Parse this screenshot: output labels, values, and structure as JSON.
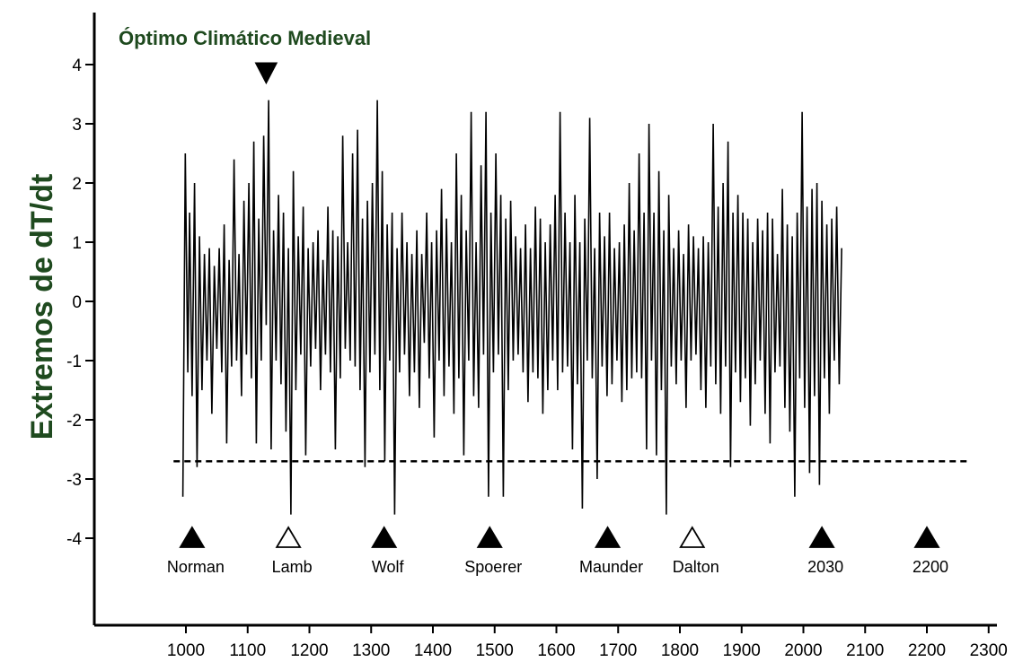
{
  "chart_data": {
    "type": "line",
    "title": "Óptimo Climático Medieval",
    "ylabel": "Extremos de dT/dt",
    "xlabel": "",
    "xlim": [
      930,
      2330
    ],
    "ylim": [
      -5,
      4.8
    ],
    "x_ticks": [
      1000,
      1100,
      1200,
      1300,
      1400,
      1500,
      1600,
      1700,
      1800,
      1900,
      2000,
      2100,
      2200,
      2300
    ],
    "y_ticks": [
      4,
      3,
      2,
      1,
      0,
      -1,
      -2,
      -3,
      -4
    ],
    "threshold": -2.7,
    "title_marker_year": 1130,
    "series": [
      {
        "values": [
          [
            995,
            -3.3
          ],
          [
            999,
            2.5
          ],
          [
            1003,
            -1.2
          ],
          [
            1006,
            1.5
          ],
          [
            1010,
            -1.6
          ],
          [
            1014,
            2.0
          ],
          [
            1018,
            -2.8
          ],
          [
            1022,
            1.1
          ],
          [
            1026,
            -1.5
          ],
          [
            1030,
            0.8
          ],
          [
            1034,
            -1.0
          ],
          [
            1038,
            0.9
          ],
          [
            1042,
            -1.9
          ],
          [
            1046,
            0.6
          ],
          [
            1050,
            -0.8
          ],
          [
            1054,
            0.9
          ],
          [
            1058,
            -1.2
          ],
          [
            1062,
            1.3
          ],
          [
            1066,
            -2.4
          ],
          [
            1070,
            0.7
          ],
          [
            1074,
            -1.1
          ],
          [
            1078,
            2.4
          ],
          [
            1082,
            -1.0
          ],
          [
            1086,
            0.8
          ],
          [
            1090,
            -1.6
          ],
          [
            1094,
            1.7
          ],
          [
            1098,
            -0.9
          ],
          [
            1102,
            2.0
          ],
          [
            1106,
            -1.3
          ],
          [
            1110,
            2.7
          ],
          [
            1114,
            -2.4
          ],
          [
            1118,
            1.4
          ],
          [
            1122,
            -1.0
          ],
          [
            1126,
            2.8
          ],
          [
            1130,
            -0.4
          ],
          [
            1134,
            3.4
          ],
          [
            1138,
            -2.5
          ],
          [
            1142,
            1.2
          ],
          [
            1146,
            -1.0
          ],
          [
            1150,
            1.8
          ],
          [
            1154,
            -1.4
          ],
          [
            1158,
            1.5
          ],
          [
            1162,
            -2.2
          ],
          [
            1166,
            0.9
          ],
          [
            1170,
            -3.6
          ],
          [
            1174,
            2.2
          ],
          [
            1178,
            -1.5
          ],
          [
            1182,
            1.1
          ],
          [
            1186,
            -0.9
          ],
          [
            1190,
            1.6
          ],
          [
            1194,
            -2.6
          ],
          [
            1198,
            0.9
          ],
          [
            1202,
            -1.1
          ],
          [
            1206,
            1.0
          ],
          [
            1210,
            -0.8
          ],
          [
            1214,
            1.2
          ],
          [
            1218,
            -1.5
          ],
          [
            1222,
            0.7
          ],
          [
            1226,
            -0.9
          ],
          [
            1230,
            1.6
          ],
          [
            1234,
            -1.2
          ],
          [
            1238,
            1.2
          ],
          [
            1242,
            -2.5
          ],
          [
            1246,
            1.1
          ],
          [
            1250,
            -1.3
          ],
          [
            1254,
            2.8
          ],
          [
            1258,
            -0.8
          ],
          [
            1262,
            1.0
          ],
          [
            1266,
            -1.0
          ],
          [
            1270,
            2.5
          ],
          [
            1274,
            -1.1
          ],
          [
            1278,
            2.9
          ],
          [
            1282,
            -1.5
          ],
          [
            1286,
            1.4
          ],
          [
            1290,
            -2.8
          ],
          [
            1294,
            1.7
          ],
          [
            1298,
            -1.2
          ],
          [
            1302,
            2.0
          ],
          [
            1306,
            -0.9
          ],
          [
            1310,
            3.4
          ],
          [
            1314,
            -1.5
          ],
          [
            1318,
            2.2
          ],
          [
            1322,
            -2.7
          ],
          [
            1326,
            1.3
          ],
          [
            1330,
            -1.0
          ],
          [
            1334,
            1.5
          ],
          [
            1338,
            -3.6
          ],
          [
            1342,
            0.9
          ],
          [
            1346,
            -1.2
          ],
          [
            1350,
            1.5
          ],
          [
            1354,
            -0.9
          ],
          [
            1358,
            1.0
          ],
          [
            1362,
            -1.6
          ],
          [
            1366,
            0.8
          ],
          [
            1370,
            -1.2
          ],
          [
            1374,
            1.2
          ],
          [
            1378,
            -1.8
          ],
          [
            1382,
            0.8
          ],
          [
            1386,
            -0.7
          ],
          [
            1390,
            1.5
          ],
          [
            1394,
            -1.3
          ],
          [
            1398,
            1.0
          ],
          [
            1402,
            -2.3
          ],
          [
            1406,
            1.2
          ],
          [
            1410,
            -1.0
          ],
          [
            1414,
            1.9
          ],
          [
            1418,
            -1.6
          ],
          [
            1422,
            1.4
          ],
          [
            1426,
            -1.1
          ],
          [
            1430,
            1.0
          ],
          [
            1434,
            -1.9
          ],
          [
            1438,
            2.5
          ],
          [
            1442,
            -1.3
          ],
          [
            1446,
            1.8
          ],
          [
            1450,
            -2.6
          ],
          [
            1454,
            1.2
          ],
          [
            1458,
            -1.0
          ],
          [
            1462,
            3.2
          ],
          [
            1466,
            -1.6
          ],
          [
            1470,
            1.0
          ],
          [
            1474,
            -1.8
          ],
          [
            1478,
            2.3
          ],
          [
            1482,
            -0.9
          ],
          [
            1486,
            3.2
          ],
          [
            1490,
            -3.3
          ],
          [
            1494,
            1.5
          ],
          [
            1498,
            -1.2
          ],
          [
            1502,
            2.5
          ],
          [
            1506,
            -0.9
          ],
          [
            1510,
            1.8
          ],
          [
            1514,
            -3.3
          ],
          [
            1518,
            1.4
          ],
          [
            1522,
            -1.5
          ],
          [
            1526,
            1.7
          ],
          [
            1530,
            -1.0
          ],
          [
            1534,
            1.1
          ],
          [
            1538,
            -0.9
          ],
          [
            1542,
            0.9
          ],
          [
            1546,
            -1.2
          ],
          [
            1550,
            1.3
          ],
          [
            1554,
            -1.7
          ],
          [
            1558,
            0.9
          ],
          [
            1562,
            -1.2
          ],
          [
            1566,
            1.6
          ],
          [
            1570,
            -1.3
          ],
          [
            1574,
            1.4
          ],
          [
            1578,
            -1.9
          ],
          [
            1582,
            1.0
          ],
          [
            1586,
            -1.5
          ],
          [
            1590,
            1.3
          ],
          [
            1594,
            -1.0
          ],
          [
            1598,
            1.8
          ],
          [
            1602,
            -1.5
          ],
          [
            1606,
            3.2
          ],
          [
            1610,
            -1.2
          ],
          [
            1614,
            1.5
          ],
          [
            1618,
            -1.1
          ],
          [
            1622,
            1.0
          ],
          [
            1626,
            -2.5
          ],
          [
            1630,
            1.8
          ],
          [
            1634,
            -1.4
          ],
          [
            1638,
            1.0
          ],
          [
            1642,
            -3.5
          ],
          [
            1646,
            1.4
          ],
          [
            1650,
            -1.0
          ],
          [
            1654,
            3.1
          ],
          [
            1658,
            -1.3
          ],
          [
            1662,
            0.9
          ],
          [
            1666,
            -3.0
          ],
          [
            1670,
            1.5
          ],
          [
            1674,
            -1.1
          ],
          [
            1678,
            1.1
          ],
          [
            1682,
            -1.6
          ],
          [
            1686,
            1.5
          ],
          [
            1690,
            -1.4
          ],
          [
            1694,
            0.9
          ],
          [
            1698,
            -1.0
          ],
          [
            1702,
            1.0
          ],
          [
            1706,
            -1.7
          ],
          [
            1710,
            1.3
          ],
          [
            1714,
            -1.5
          ],
          [
            1718,
            2.0
          ],
          [
            1722,
            -1.3
          ],
          [
            1726,
            1.2
          ],
          [
            1730,
            -1.2
          ],
          [
            1734,
            2.5
          ],
          [
            1738,
            -1.3
          ],
          [
            1742,
            1.5
          ],
          [
            1746,
            -2.5
          ],
          [
            1750,
            3.0
          ],
          [
            1754,
            -1.0
          ],
          [
            1758,
            1.5
          ],
          [
            1762,
            -2.6
          ],
          [
            1766,
            2.2
          ],
          [
            1770,
            -1.5
          ],
          [
            1774,
            1.2
          ],
          [
            1778,
            -3.6
          ],
          [
            1782,
            1.8
          ],
          [
            1786,
            -1.1
          ],
          [
            1790,
            0.9
          ],
          [
            1794,
            -1.4
          ],
          [
            1798,
            1.2
          ],
          [
            1802,
            -1.0
          ],
          [
            1806,
            0.8
          ],
          [
            1810,
            -1.8
          ],
          [
            1814,
            1.3
          ],
          [
            1818,
            -1.0
          ],
          [
            1822,
            1.1
          ],
          [
            1826,
            -0.9
          ],
          [
            1830,
            0.9
          ],
          [
            1834,
            -1.5
          ],
          [
            1838,
            1.1
          ],
          [
            1842,
            -1.8
          ],
          [
            1846,
            1.0
          ],
          [
            1850,
            -1.1
          ],
          [
            1854,
            3.0
          ],
          [
            1858,
            -1.4
          ],
          [
            1862,
            1.6
          ],
          [
            1866,
            -1.9
          ],
          [
            1870,
            2.0
          ],
          [
            1874,
            -1.1
          ],
          [
            1878,
            2.7
          ],
          [
            1882,
            -2.8
          ],
          [
            1886,
            1.5
          ],
          [
            1890,
            -1.2
          ],
          [
            1894,
            1.8
          ],
          [
            1898,
            -1.7
          ],
          [
            1902,
            1.5
          ],
          [
            1906,
            -1.3
          ],
          [
            1910,
            1.4
          ],
          [
            1914,
            -2.1
          ],
          [
            1918,
            1.0
          ],
          [
            1922,
            -1.4
          ],
          [
            1926,
            1.4
          ],
          [
            1930,
            -1.0
          ],
          [
            1934,
            1.2
          ],
          [
            1938,
            -1.9
          ],
          [
            1942,
            1.5
          ],
          [
            1946,
            -2.4
          ],
          [
            1950,
            1.4
          ],
          [
            1954,
            -1.2
          ],
          [
            1958,
            0.8
          ],
          [
            1962,
            -1.1
          ],
          [
            1966,
            1.9
          ],
          [
            1970,
            -1.8
          ],
          [
            1974,
            1.3
          ],
          [
            1978,
            -2.2
          ],
          [
            1982,
            1.1
          ],
          [
            1986,
            -3.3
          ],
          [
            1990,
            1.5
          ],
          [
            1994,
            -1.3
          ],
          [
            1998,
            3.2
          ],
          [
            2002,
            -1.8
          ],
          [
            2006,
            1.6
          ],
          [
            2010,
            -2.9
          ],
          [
            2014,
            1.9
          ],
          [
            2018,
            -1.6
          ],
          [
            2022,
            2.0
          ],
          [
            2026,
            -3.1
          ],
          [
            2030,
            1.7
          ],
          [
            2034,
            -1.3
          ],
          [
            2038,
            1.3
          ],
          [
            2042,
            -1.9
          ],
          [
            2046,
            1.4
          ],
          [
            2050,
            -1.0
          ],
          [
            2054,
            1.6
          ],
          [
            2058,
            -1.4
          ],
          [
            2062,
            0.9
          ]
        ]
      }
    ],
    "event_markers": [
      {
        "label": "Norman",
        "x": 1010,
        "style": "filled"
      },
      {
        "label": "Lamb",
        "x": 1166,
        "style": "open"
      },
      {
        "label": "Wolf",
        "x": 1321,
        "style": "filled"
      },
      {
        "label": "Spoerer",
        "x": 1492,
        "style": "filled"
      },
      {
        "label": "Maunder",
        "x": 1683,
        "style": "filled"
      },
      {
        "label": "Dalton",
        "x": 1820,
        "style": "open"
      },
      {
        "label": "2030",
        "x": 2030,
        "style": "filled"
      },
      {
        "label": "2200",
        "x": 2200,
        "style": "filled"
      }
    ],
    "grid": false,
    "line_color": "#000000",
    "title_color": "#1f4a1f",
    "ylabel_color": "#1f4a1f"
  }
}
